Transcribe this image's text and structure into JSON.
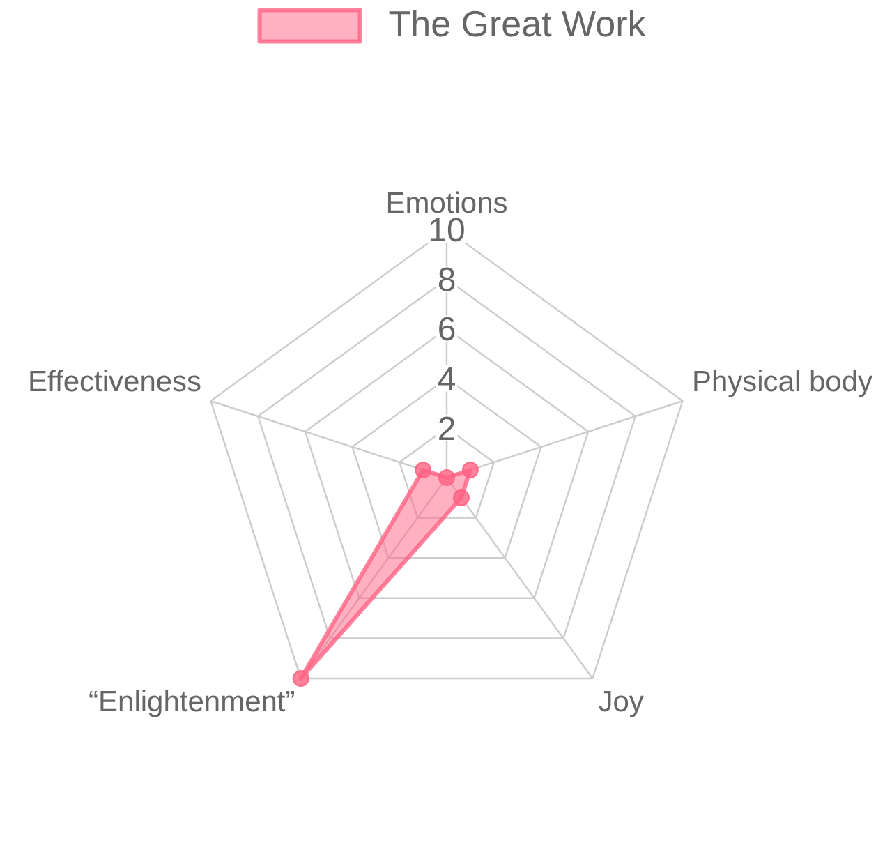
{
  "chart_data": {
    "type": "radar",
    "categories": [
      "Emotions",
      "Physical body",
      "Joy",
      "“Enlightenment”",
      "Effectiveness"
    ],
    "series": [
      {
        "name": "The Great Work",
        "color": "#ff6384",
        "values": [
          0,
          1,
          1,
          10,
          1
        ]
      }
    ],
    "ylim": [
      0,
      10
    ],
    "yticks": [
      2,
      4,
      6,
      8,
      10
    ],
    "grid": true,
    "legend": "top",
    "marker": "circle"
  }
}
